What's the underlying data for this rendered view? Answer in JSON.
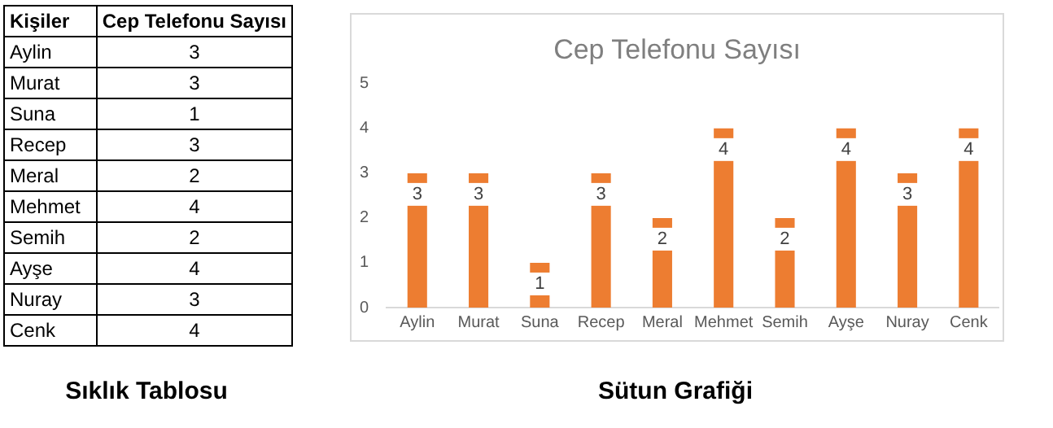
{
  "chart_data": [
    {
      "type": "other",
      "categories": [
        "Aylin",
        "Murat",
        "Suna",
        "Recep",
        "Meral",
        "Mehmet",
        "Semih",
        "Ayşe",
        "Nuray",
        "Cenk"
      ],
      "values": [
        3,
        3,
        1,
        3,
        2,
        4,
        2,
        4,
        3,
        4
      ],
      "data_labels": true,
      "annotations": [
        "Kişiler",
        "Cep Telefonu Sayısı",
        "Sıklık Tablosu"
      ]
    },
    {
      "type": "bar",
      "title": "Cep Telefonu Sayısı",
      "categories": [
        "Aylin",
        "Murat",
        "Suna",
        "Recep",
        "Meral",
        "Mehmet",
        "Semih",
        "Ayşe",
        "Nuray",
        "Cenk"
      ],
      "values": [
        3,
        3,
        1,
        3,
        2,
        4,
        2,
        4,
        3,
        4
      ],
      "color": "#ed7d31",
      "ylim": [
        0,
        5
      ],
      "yticks": [
        0,
        1,
        2,
        3,
        4,
        5
      ],
      "grid": false,
      "legend": false,
      "data_labels": true,
      "annotations": [
        "Sütun Grafiği"
      ]
    }
  ]
}
